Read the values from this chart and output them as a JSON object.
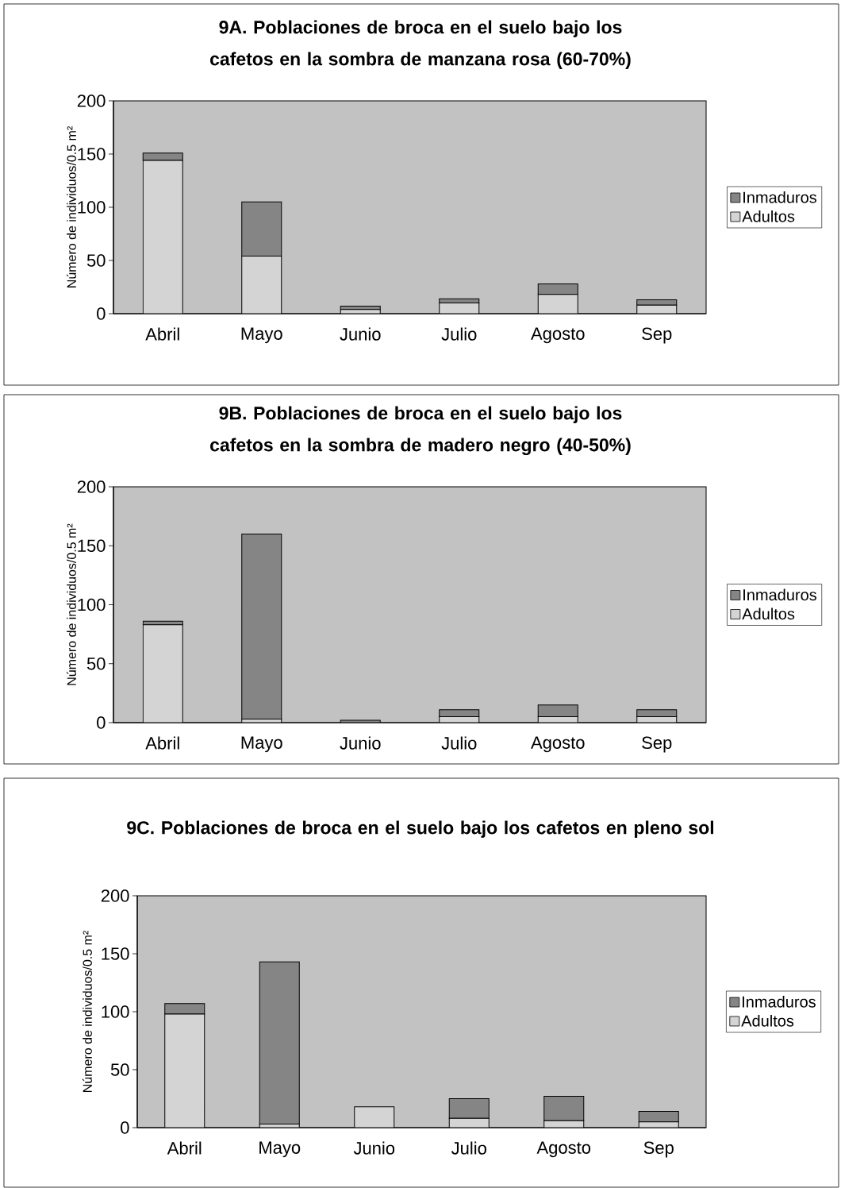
{
  "chart_data": [
    {
      "type": "bar",
      "stacked": true,
      "title": "9A. Poblaciones de broca en el suelo bajo los cafetos en la sombra de manzana rosa (60-70%)",
      "ylabel": "Número de individuos/0.5 m²",
      "categories": [
        "Abril",
        "Mayo",
        "Junio",
        "Julio",
        "Agosto",
        "Sep"
      ],
      "ylim": [
        0,
        200
      ],
      "yticks": [
        0,
        50,
        100,
        150,
        200
      ],
      "legend": "right",
      "series": [
        {
          "name": "Adultos",
          "color": "#d4d4d4",
          "values": [
            144,
            54,
            4,
            10,
            18,
            8
          ]
        },
        {
          "name": "Inmaduros",
          "color": "#858585",
          "values": [
            7,
            51,
            3,
            4,
            10,
            5
          ]
        }
      ]
    },
    {
      "type": "bar",
      "stacked": true,
      "title": "9B. Poblaciones de broca en el suelo bajo los cafetos en la sombra de madero negro (40-50%)",
      "ylabel": "Número de individuos/0.5 m²",
      "categories": [
        "Abril",
        "Mayo",
        "Junio",
        "Julio",
        "Agosto",
        "Sep"
      ],
      "ylim": [
        0,
        200
      ],
      "yticks": [
        0,
        50,
        100,
        150,
        200
      ],
      "legend": "right",
      "series": [
        {
          "name": "Adultos",
          "color": "#d4d4d4",
          "values": [
            83,
            3,
            null,
            5,
            5,
            5
          ]
        },
        {
          "name": "Inmaduros",
          "color": "#858585",
          "values": [
            3,
            157,
            2,
            6,
            10,
            6
          ]
        }
      ]
    },
    {
      "type": "bar",
      "stacked": true,
      "title": "9C. Poblaciones de broca en el suelo bajo los cafetos en pleno sol",
      "ylabel": "Número de individuos/0.5 m²",
      "categories": [
        "Abril",
        "Mayo",
        "Junio",
        "Julio",
        "Agosto",
        "Sep"
      ],
      "ylim": [
        0,
        200
      ],
      "yticks": [
        0,
        50,
        100,
        150,
        200
      ],
      "legend": "right",
      "series": [
        {
          "name": "Adultos",
          "color": "#d4d4d4",
          "values": [
            98,
            3,
            18,
            8,
            6,
            5
          ]
        },
        {
          "name": "Inmaduros",
          "color": "#858585",
          "values": [
            9,
            140,
            0,
            17,
            21,
            9
          ]
        }
      ]
    }
  ]
}
